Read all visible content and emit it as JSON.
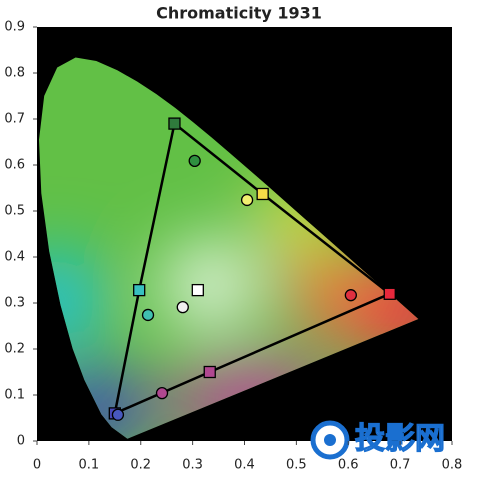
{
  "chart_data": {
    "type": "scatter",
    "title": "Chromaticity 1931",
    "xlim": [
      0,
      0.8
    ],
    "xticks": [
      0,
      0.1,
      0.2,
      0.3,
      0.4,
      0.5,
      0.6,
      0.7,
      0.8
    ],
    "ylim": [
      0,
      0.9
    ],
    "yticks": [
      0,
      0.1,
      0.2,
      0.3,
      0.4,
      0.5,
      0.6,
      0.7,
      0.8,
      0.9
    ],
    "background": "#000000",
    "series": [
      {
        "marker": "square",
        "closed": true,
        "line_color": "#000000",
        "x": [
          0.68,
          0.435,
          0.265,
          0.197,
          0.15,
          0.333
        ],
        "y": [
          0.32,
          0.537,
          0.69,
          0.328,
          0.06,
          0.15
        ],
        "colors": [
          "#e8283c",
          "#f6dc48",
          "#2f7a3c",
          "#38c0c0",
          "#4848b8",
          "#b04890"
        ]
      },
      {
        "marker": "square",
        "x": [
          0.31
        ],
        "y": [
          0.328
        ],
        "colors": [
          "#ffffff"
        ]
      },
      {
        "marker": "circle",
        "x": [
          0.605,
          0.304,
          0.156,
          0.405,
          0.214,
          0.241,
          0.281
        ],
        "y": [
          0.317,
          0.609,
          0.057,
          0.524,
          0.274,
          0.104,
          0.291
        ],
        "colors": [
          "#e03040",
          "#2f9040",
          "#4858c0",
          "#f2f070",
          "#40c0b0",
          "#b04890",
          "#f0f0f0"
        ]
      }
    ]
  },
  "watermark": "投影网"
}
